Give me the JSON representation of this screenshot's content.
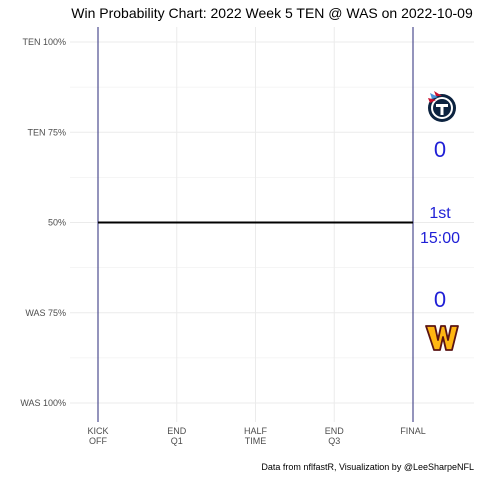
{
  "chart_data": {
    "type": "line",
    "title": "Win Probability Chart: 2022 Week 5 TEN @ WAS on 2022-10-09",
    "caption": "Data from nflfastR, Visualization by @LeeSharpeNFL",
    "y_ticks": [
      {
        "value": 100,
        "label": "TEN 100%"
      },
      {
        "value": 75,
        "label": "TEN 75%"
      },
      {
        "value": 50,
        "label": "50%"
      },
      {
        "value": 25,
        "label": "WAS 75%"
      },
      {
        "value": 0,
        "label": "WAS 100%"
      }
    ],
    "ylim": [
      0,
      100
    ],
    "x_ticks": [
      {
        "value": 0,
        "label": [
          "KICK",
          "OFF"
        ]
      },
      {
        "value": 0.25,
        "label": [
          "END",
          "Q1"
        ]
      },
      {
        "value": 0.5,
        "label": [
          "HALF",
          "TIME"
        ]
      },
      {
        "value": 0.75,
        "label": [
          "END",
          "Q3"
        ]
      },
      {
        "value": 1,
        "label": [
          "FINAL"
        ]
      }
    ],
    "xlim": [
      0,
      1
    ],
    "series": [
      {
        "color": "#000000",
        "x": [
          0,
          1
        ],
        "y": [
          50,
          50
        ]
      }
    ],
    "grid": true,
    "home_team_score": "0",
    "away_team_score": "0",
    "quarter": "1st",
    "clock": "15:00",
    "colors": {
      "score_text": "#1f1fd6",
      "boundary_lines": "#2a2a7a",
      "grid": "#ebebeb",
      "titans_navy": "#0c2340",
      "titans_blue": "#4b92db",
      "titans_red": "#c8102e",
      "commanders_gold": "#ffb612",
      "commanders_burgundy": "#5a1414"
    },
    "logos": {
      "top": "titans-logo",
      "bottom": "commanders-logo"
    }
  }
}
